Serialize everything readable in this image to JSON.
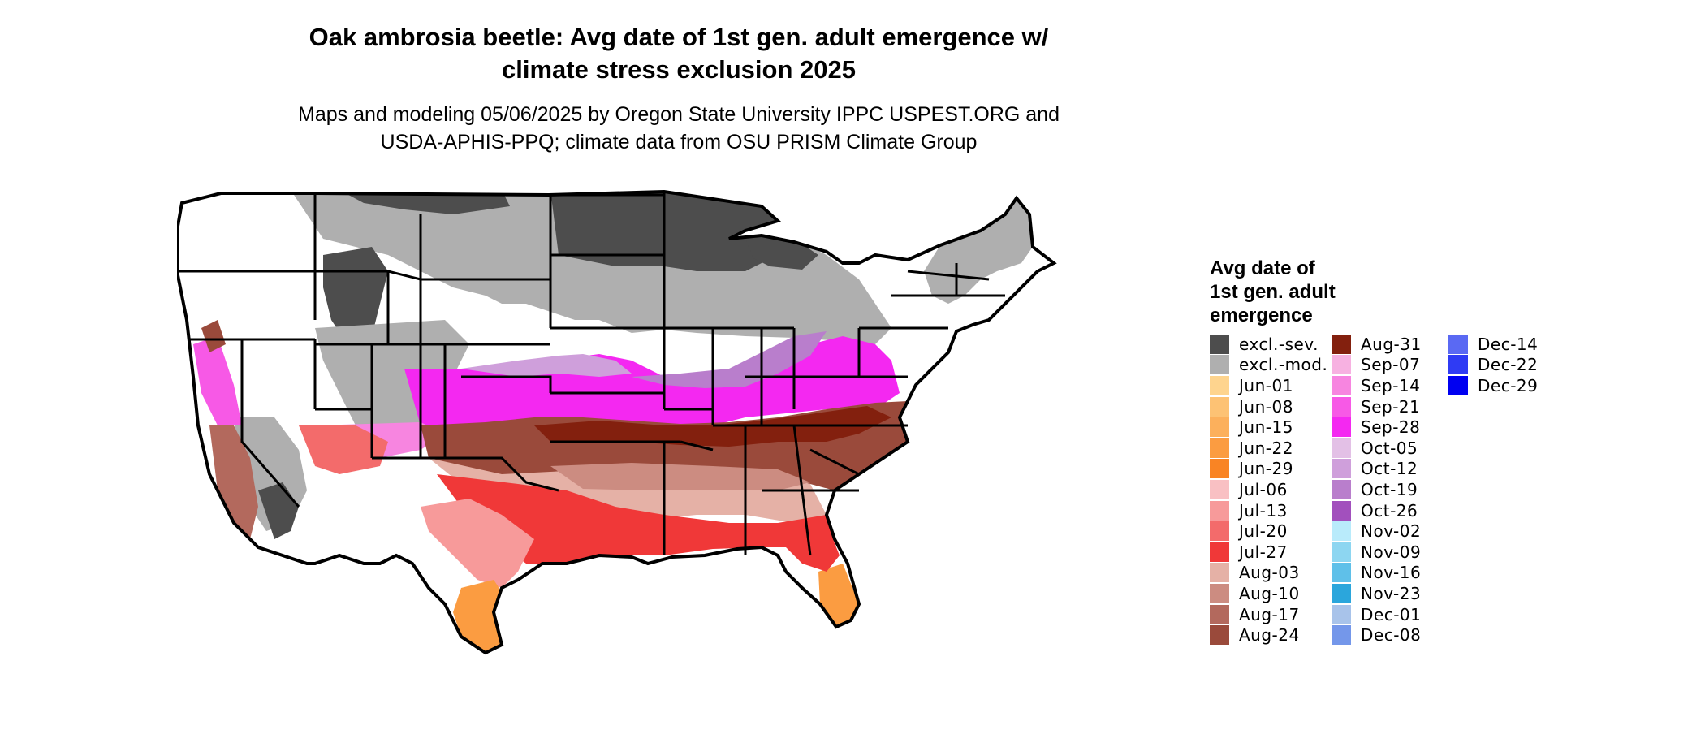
{
  "header": {
    "title_line1": "Oak ambrosia beetle: Avg date of 1st gen. adult emergence w/",
    "title_line2": "climate stress exclusion 2025",
    "subtitle_line1": "Maps and modeling 05/06/2025 by Oregon State University IPPC USPEST.ORG and",
    "subtitle_line2": "USDA-APHIS-PPQ; climate data from OSU PRISM Climate Group"
  },
  "legend": {
    "title_line1": "Avg date of",
    "title_line2": "1st gen. adult",
    "title_line3": "emergence",
    "columns": [
      [
        {
          "label": "excl.-sev.",
          "color": "#4d4d4d"
        },
        {
          "label": "excl.-mod.",
          "color": "#afafaf"
        },
        {
          "label": "Jun-01",
          "color": "#fed48e"
        },
        {
          "label": "Jun-08",
          "color": "#fdc274"
        },
        {
          "label": "Jun-15",
          "color": "#fcb05c"
        },
        {
          "label": "Jun-22",
          "color": "#fb9c41"
        },
        {
          "label": "Jun-29",
          "color": "#f98424"
        },
        {
          "label": "Jul-06",
          "color": "#f9c0c3"
        },
        {
          "label": "Jul-13",
          "color": "#f79a9a"
        },
        {
          "label": "Jul-20",
          "color": "#f36b6b"
        },
        {
          "label": "Jul-27",
          "color": "#f03838"
        },
        {
          "label": "Aug-03",
          "color": "#e5b1a6"
        },
        {
          "label": "Aug-10",
          "color": "#cc8c81"
        },
        {
          "label": "Aug-17",
          "color": "#b3695d"
        },
        {
          "label": "Aug-24",
          "color": "#9a4a3b"
        }
      ],
      [
        {
          "label": "Aug-31",
          "color": "#83200e"
        },
        {
          "label": "Sep-07",
          "color": "#f7b1e1"
        },
        {
          "label": "Sep-14",
          "color": "#f785e0"
        },
        {
          "label": "Sep-21",
          "color": "#f759e6"
        },
        {
          "label": "Sep-28",
          "color": "#f428f1"
        },
        {
          "label": "Oct-05",
          "color": "#e3c0e6"
        },
        {
          "label": "Oct-12",
          "color": "#cf9fdb"
        },
        {
          "label": "Oct-19",
          "color": "#b97ecc"
        },
        {
          "label": "Oct-26",
          "color": "#a250bd"
        },
        {
          "label": "Nov-02",
          "color": "#b9ebfb"
        },
        {
          "label": "Nov-09",
          "color": "#8dd6f1"
        },
        {
          "label": "Nov-16",
          "color": "#5fc0e9"
        },
        {
          "label": "Nov-23",
          "color": "#2ba6dc"
        },
        {
          "label": "Dec-01",
          "color": "#a8c3ea"
        },
        {
          "label": "Dec-08",
          "color": "#7497ea"
        }
      ],
      [
        {
          "label": "Dec-14",
          "color": "#5a69f3"
        },
        {
          "label": "Dec-22",
          "color": "#2f3bf4"
        },
        {
          "label": "Dec-29",
          "color": "#0000f1"
        }
      ]
    ]
  },
  "map": {
    "outline_color": "#000000",
    "background_color": "#ffffff"
  }
}
